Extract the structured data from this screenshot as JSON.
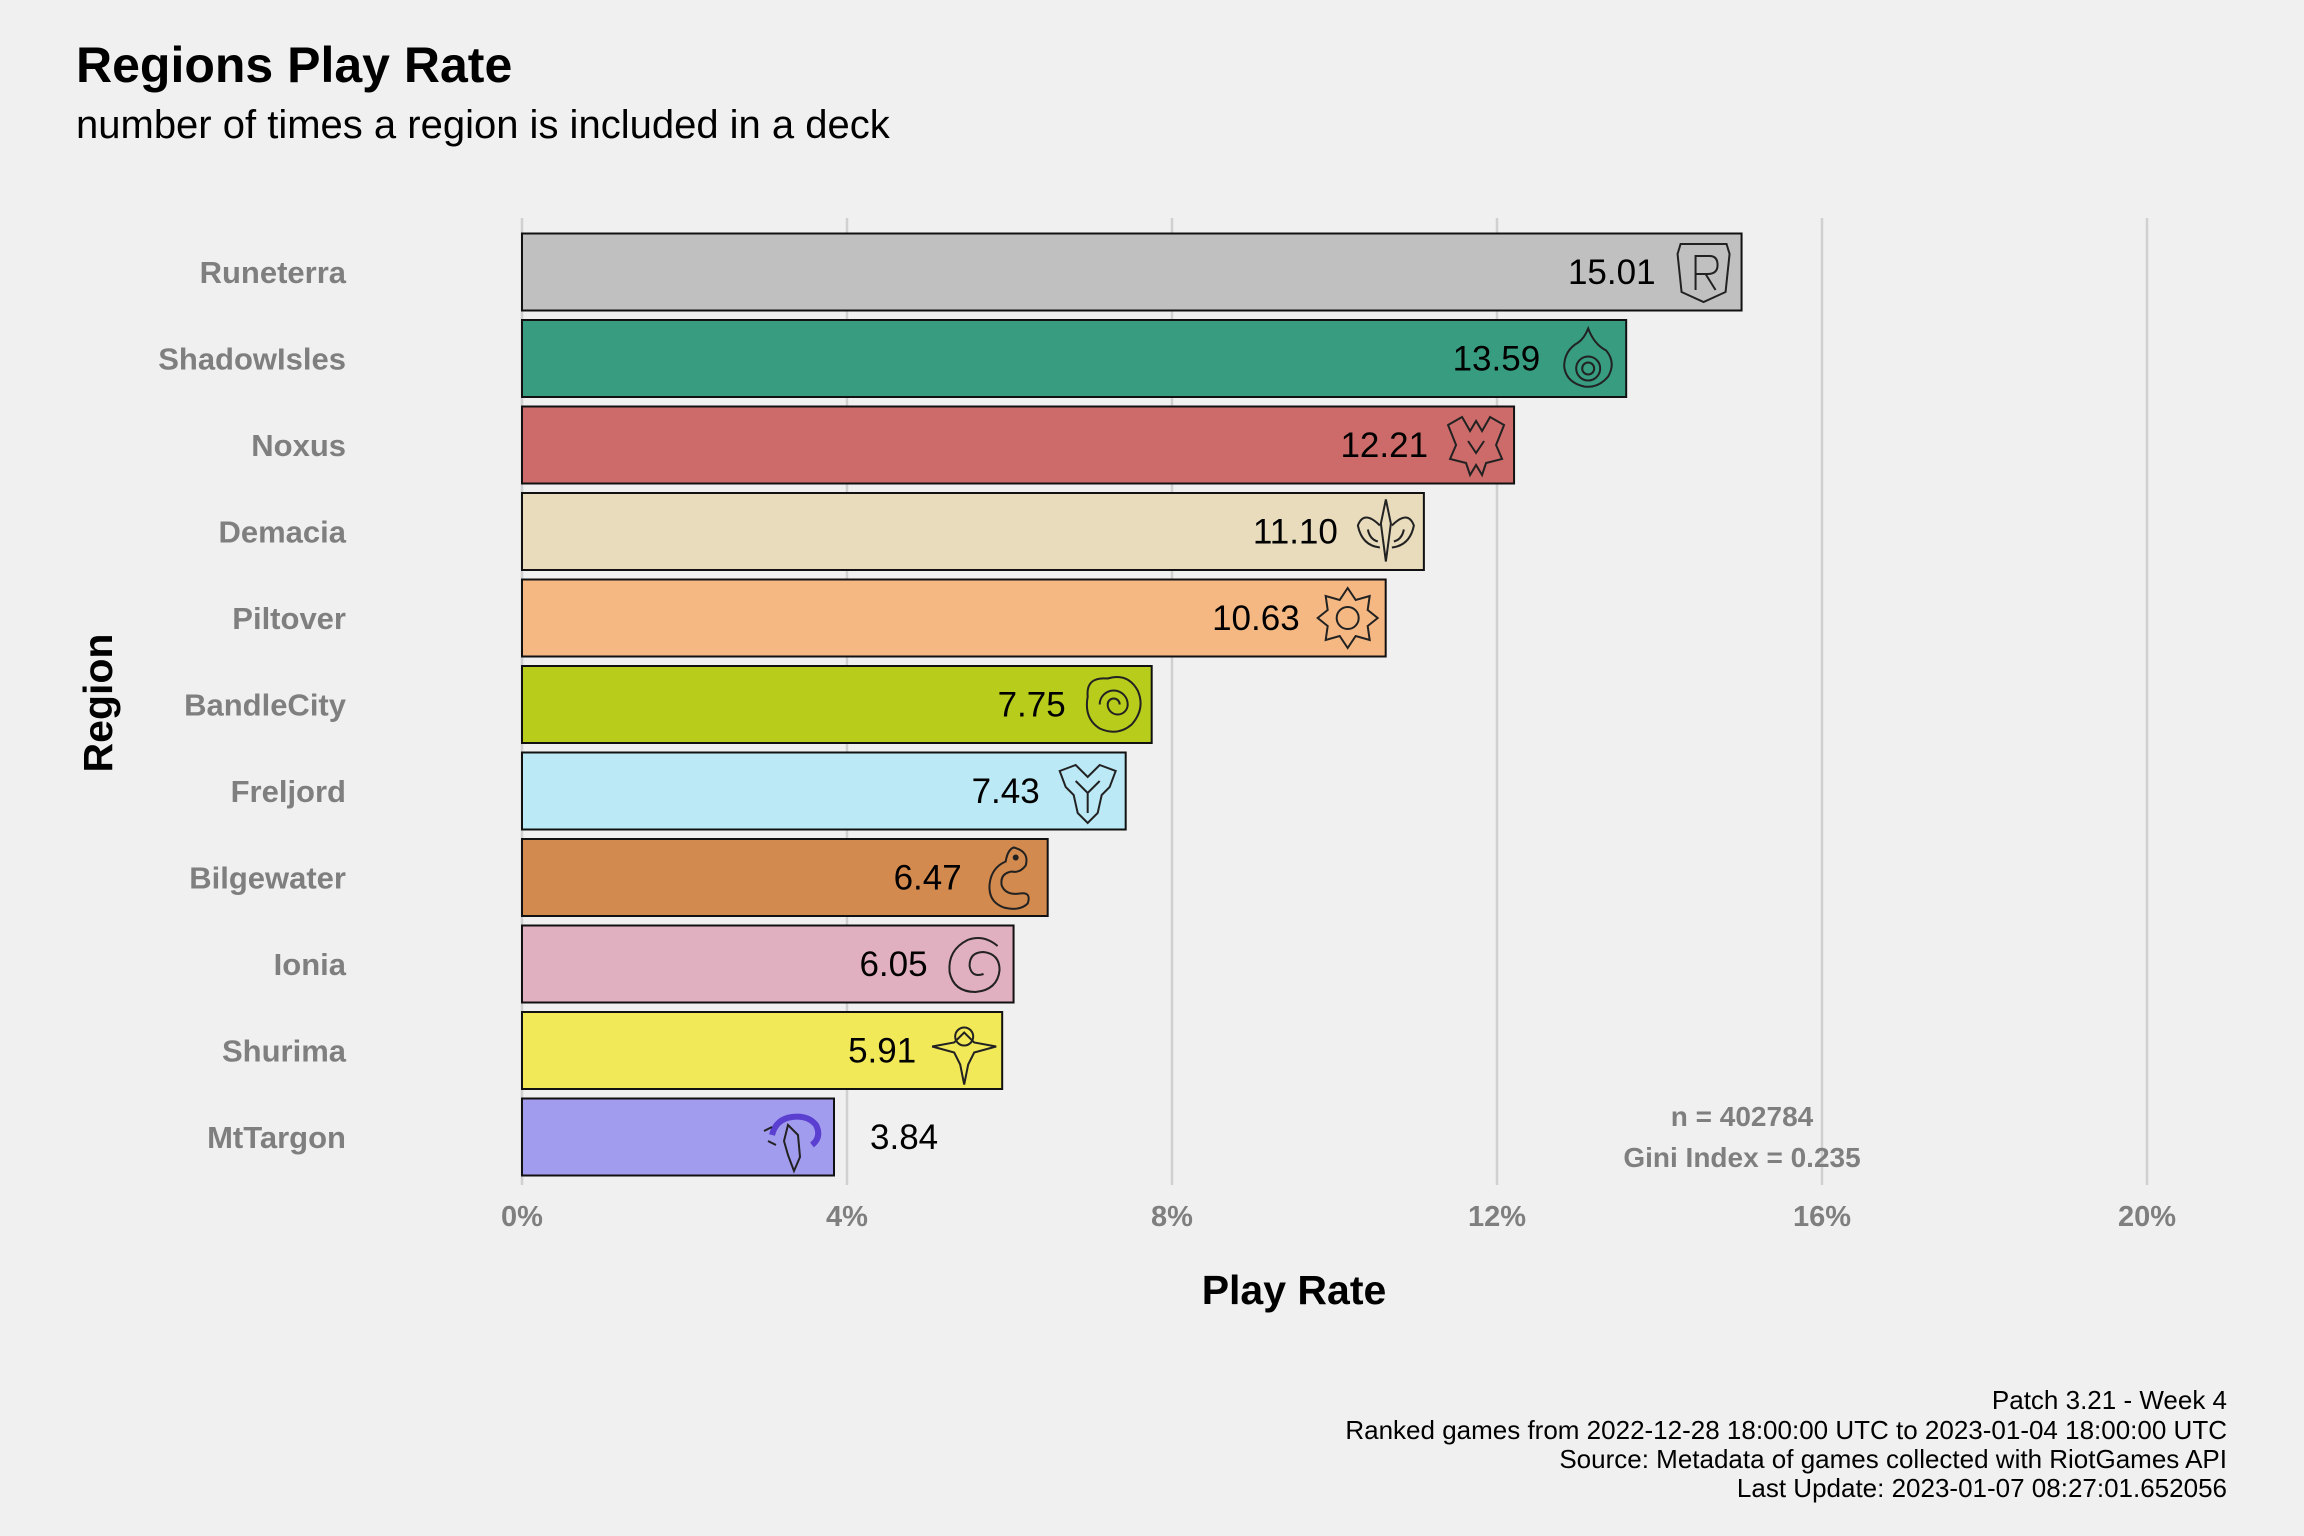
{
  "chart_data": {
    "type": "bar",
    "orientation": "horizontal",
    "title": "Regions Play Rate",
    "subtitle": "number of times a region is included in a deck",
    "xlabel": "Play Rate",
    "ylabel": "Region",
    "xlim": [
      0,
      20
    ],
    "xticks": [
      0,
      4,
      8,
      12,
      16,
      20
    ],
    "xtick_labels": [
      "0%",
      "4%",
      "8%",
      "12%",
      "16%",
      "20%"
    ],
    "grid": "vertical-major",
    "categories": [
      "Runeterra",
      "ShadowIsles",
      "Noxus",
      "Demacia",
      "Piltover",
      "BandleCity",
      "Freljord",
      "Bilgewater",
      "Ionia",
      "Shurima",
      "MtTargon"
    ],
    "values": [
      15.01,
      13.59,
      12.21,
      11.1,
      10.63,
      7.75,
      7.43,
      6.47,
      6.05,
      5.91,
      3.84
    ],
    "value_labels": [
      "15.01",
      "13.59",
      "12.21",
      "11.10",
      "10.63",
      "7.75",
      "7.43",
      "6.47",
      "6.05",
      "5.91",
      "3.84"
    ],
    "colors": [
      "#c0c0c0",
      "#379c80",
      "#cd6b6b",
      "#e8dcbd",
      "#f5b883",
      "#b8cc1c",
      "#bbe9f6",
      "#d38a4e",
      "#e0afc0",
      "#f2e959",
      "#a29cee"
    ],
    "icons": [
      "runeterra-icon",
      "shadow-isles-icon",
      "noxus-icon",
      "demacia-icon",
      "piltover-icon",
      "bandle-city-icon",
      "freljord-icon",
      "bilgewater-icon",
      "ionia-icon",
      "shurima-icon",
      "mt-targon-icon"
    ],
    "icon_colors": [
      "#e6e3da",
      "#1fb5a6",
      "#b32f2f",
      "#e8dcbd",
      "#f2b24a",
      "#9fc43c",
      "#8fd0ea",
      "#c4573a",
      "#d76e92",
      "#e3cf3a",
      "#5a3fd1"
    ],
    "annotations": [
      "n = 402784",
      "Gini Index = 0.235"
    ],
    "caption": [
      "Patch 3.21 - Week 4",
      "Ranked games from 2022-12-28 18:00:00 UTC to 2023-01-04 18:00:00 UTC",
      "Source: Metadata of games collected with RiotGames API",
      "Last Update: 2023-01-07 08:27:01.652056"
    ]
  }
}
